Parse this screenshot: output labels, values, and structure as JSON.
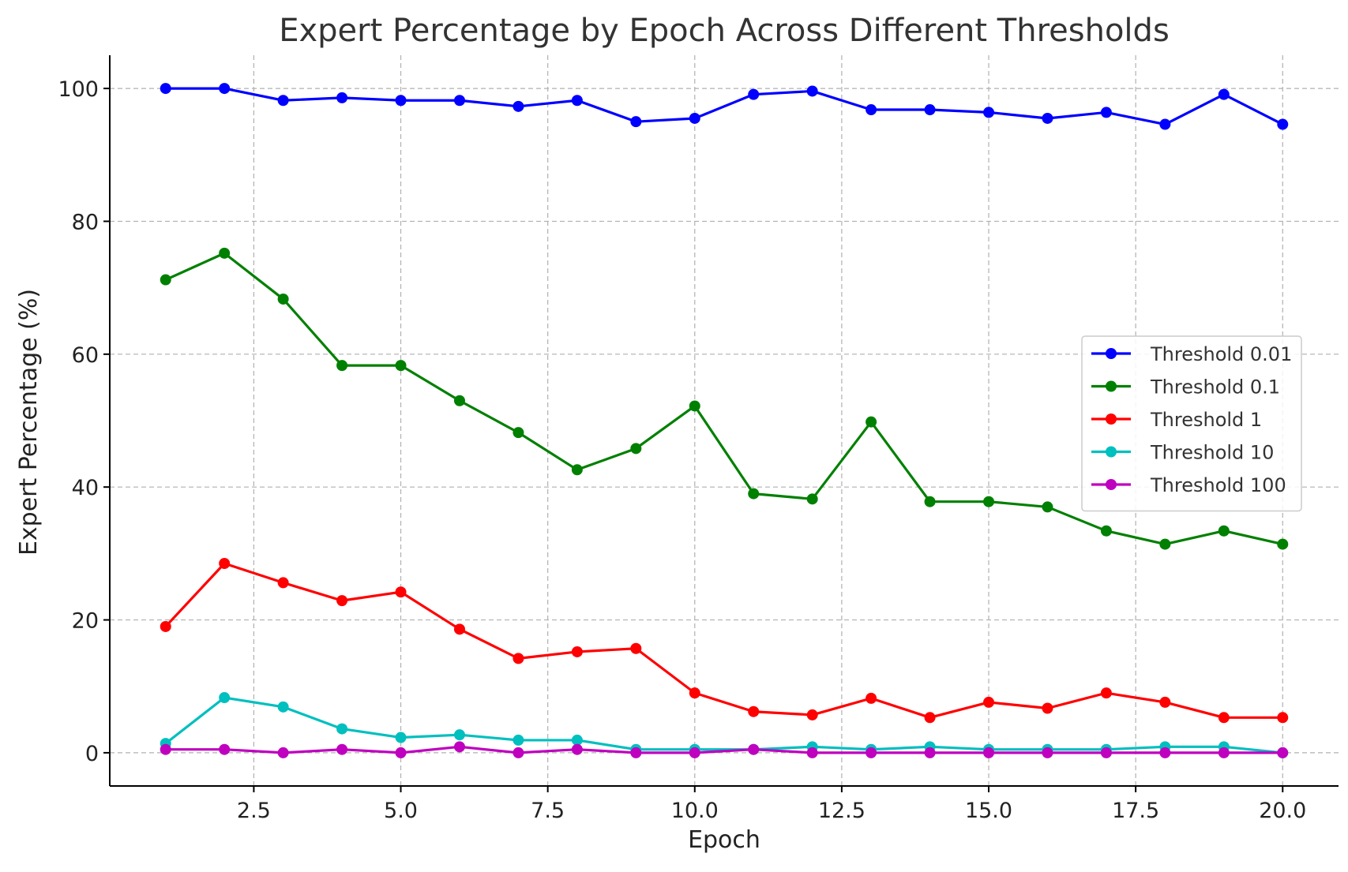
{
  "chart_data": {
    "type": "line",
    "title": "Expert Percentage by Epoch Across Different Thresholds",
    "xlabel": "Epoch",
    "ylabel": "Expert Percentage (%)",
    "xlim": [
      0.05,
      20.95
    ],
    "ylim": [
      -5,
      105
    ],
    "xticks": [
      2.5,
      5.0,
      7.5,
      10.0,
      12.5,
      15.0,
      17.5,
      20.0
    ],
    "xtick_labels": [
      "2.5",
      "5.0",
      "7.5",
      "10.0",
      "12.5",
      "15.0",
      "17.5",
      "20.0"
    ],
    "yticks": [
      0,
      20,
      40,
      60,
      80,
      100
    ],
    "ytick_labels": [
      "0",
      "20",
      "40",
      "60",
      "80",
      "100"
    ],
    "grid": true,
    "legend_position": "center-right",
    "x": [
      1,
      2,
      3,
      4,
      5,
      6,
      7,
      8,
      9,
      10,
      11,
      12,
      13,
      14,
      15,
      16,
      17,
      18,
      19,
      20
    ],
    "series": [
      {
        "name": "Threshold 0.01",
        "color": "#0000ff",
        "values": [
          100,
          100,
          98.2,
          98.6,
          98.2,
          98.2,
          97.3,
          98.2,
          95.0,
          95.5,
          99.1,
          99.6,
          96.8,
          96.8,
          96.4,
          95.5,
          96.4,
          94.6,
          99.1,
          94.6
        ]
      },
      {
        "name": "Threshold 0.1",
        "color": "#008000",
        "values": [
          71.2,
          75.2,
          68.3,
          58.3,
          58.3,
          53.0,
          48.2,
          42.6,
          45.8,
          52.2,
          39.0,
          38.2,
          49.8,
          37.8,
          37.8,
          37.0,
          33.4,
          31.4,
          33.4,
          31.4
        ]
      },
      {
        "name": "Threshold 1",
        "color": "#ff0000",
        "values": [
          19.0,
          28.5,
          25.6,
          22.9,
          24.2,
          18.6,
          14.2,
          15.2,
          15.7,
          9.0,
          6.2,
          5.7,
          8.2,
          5.3,
          7.6,
          6.7,
          9.0,
          7.6,
          5.3,
          5.3
        ]
      },
      {
        "name": "Threshold 10",
        "color": "#00bfbf",
        "values": [
          1.4,
          8.3,
          6.9,
          3.6,
          2.3,
          2.7,
          1.9,
          1.9,
          0.5,
          0.5,
          0.5,
          0.9,
          0.5,
          0.9,
          0.5,
          0.5,
          0.5,
          0.9,
          0.9,
          0.0
        ]
      },
      {
        "name": "Threshold 100",
        "color": "#bf00bf",
        "values": [
          0.5,
          0.5,
          0.0,
          0.5,
          0.0,
          0.9,
          0.0,
          0.5,
          0.0,
          0.0,
          0.5,
          0.0,
          0.0,
          0.0,
          0.0,
          0.0,
          0.0,
          0.0,
          0.0,
          0.0
        ]
      }
    ]
  }
}
